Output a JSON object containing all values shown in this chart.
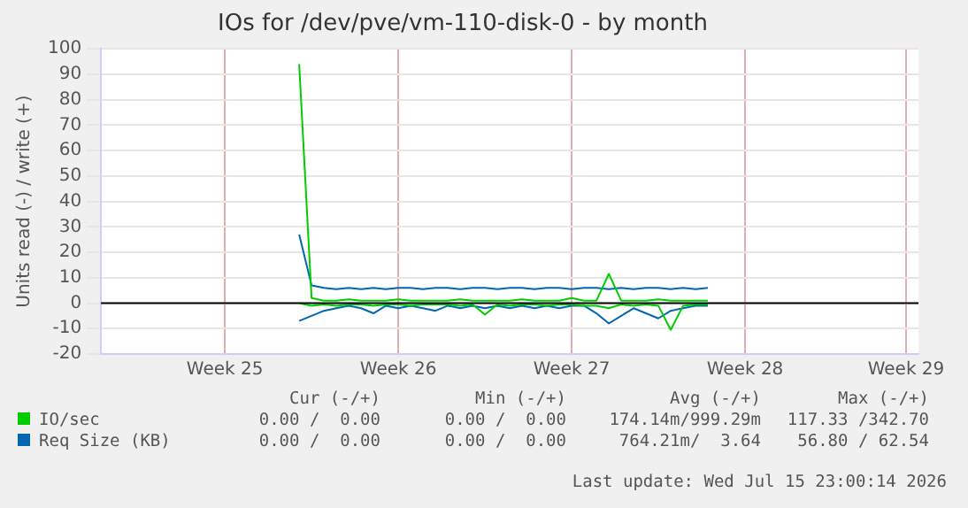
{
  "chart_data": {
    "type": "line",
    "title": "IOs for /dev/pve/vm-110-disk-0 - by month",
    "ylabel": "Units read (-) / write (+)",
    "categories": [
      null,
      null,
      null,
      null,
      null,
      null,
      null,
      null,
      null,
      null,
      "Week 25",
      null,
      null,
      null,
      null,
      null,
      null,
      null,
      null,
      null,
      null,
      null,
      null,
      null,
      "Week 26",
      null,
      null,
      null,
      null,
      null,
      null,
      null,
      null,
      null,
      null,
      null,
      null,
      null,
      "Week 27",
      null,
      null,
      null,
      null,
      null,
      null,
      null,
      null,
      null,
      null,
      null,
      null,
      null,
      "Week 28",
      null,
      null,
      null,
      null,
      null,
      null,
      null,
      null,
      null,
      null,
      null,
      null,
      "Week 29",
      null
    ],
    "series": [
      {
        "name": "IO/sec",
        "color": "#00cc00",
        "values": [
          null,
          null,
          null,
          null,
          null,
          null,
          null,
          null,
          null,
          null,
          null,
          null,
          null,
          null,
          null,
          null,
          94,
          2,
          1,
          1,
          1.5,
          1,
          1,
          1,
          1.5,
          1,
          1,
          1,
          1,
          1.5,
          1,
          1,
          1,
          1,
          1.5,
          1,
          1,
          1,
          2,
          1,
          1,
          11.5,
          1,
          1,
          1,
          1.5,
          1,
          1,
          1,
          1,
          null,
          null,
          null,
          null,
          null,
          null,
          null,
          null,
          null,
          null,
          null,
          null,
          null,
          null,
          null,
          null,
          null
        ]
      },
      {
        "color": "#00cc00",
        "values": [
          null,
          null,
          null,
          null,
          null,
          null,
          null,
          null,
          null,
          null,
          null,
          null,
          null,
          null,
          null,
          null,
          0,
          -1,
          -0.5,
          -1,
          -0.5,
          -0.5,
          -1,
          -0.5,
          -0.5,
          -1,
          -0.5,
          -0.5,
          -0.5,
          -1,
          -0.5,
          -4.5,
          -0.5,
          -1,
          -0.5,
          -0.5,
          -1,
          -0.5,
          -0.5,
          -1,
          -1,
          -2,
          -0.5,
          -1,
          -0.5,
          -1,
          -10.5,
          -1,
          -0.5,
          -0.5,
          null,
          null,
          null,
          null,
          null,
          null,
          null,
          null,
          null,
          null,
          null,
          null,
          null,
          null,
          null,
          null,
          null
        ]
      },
      {
        "name": "Req Size (KB)",
        "color": "#0066b3",
        "values": [
          null,
          null,
          null,
          null,
          null,
          null,
          null,
          null,
          null,
          null,
          null,
          null,
          null,
          null,
          null,
          null,
          27,
          7,
          6,
          5.5,
          6,
          5.5,
          6,
          5.5,
          6,
          6,
          5.5,
          6,
          6,
          5.5,
          6,
          6,
          5.5,
          6,
          6,
          5.5,
          6,
          6,
          5.5,
          6,
          6,
          5.5,
          6,
          5.5,
          6,
          6,
          5.5,
          6,
          5.5,
          6,
          null,
          null,
          null,
          null,
          null,
          null,
          null,
          null,
          null,
          null,
          null,
          null,
          null,
          null,
          null,
          null,
          null
        ]
      },
      {
        "color": "#0066b3",
        "values": [
          null,
          null,
          null,
          null,
          null,
          null,
          null,
          null,
          null,
          null,
          null,
          null,
          null,
          null,
          null,
          null,
          -7,
          -5,
          -3,
          -2,
          -1,
          -2,
          -4,
          -1,
          -2,
          -1,
          -2,
          -3,
          -1,
          -2,
          -1,
          -2,
          -1,
          -2,
          -1,
          -2,
          -1,
          -2,
          -1,
          -1,
          -4,
          -8,
          -5,
          -2,
          -4,
          -6,
          -3,
          -2,
          -1,
          -1,
          null,
          null,
          null,
          null,
          null,
          null,
          null,
          null,
          null,
          null,
          null,
          null,
          null,
          null,
          null,
          null,
          null
        ]
      }
    ],
    "ylim": [
      -20,
      100
    ],
    "yticks": [
      -20,
      -10,
      0,
      10,
      20,
      30,
      40,
      50,
      60,
      70,
      80,
      90,
      100
    ],
    "ref_lines": [
      {
        "axis": "y",
        "value": 0,
        "color": "#000000"
      }
    ],
    "grid": true,
    "legend": "bottom",
    "marker": "none",
    "line_style": "solid",
    "annotations": [
      "Cur (-/+)",
      "Min (-/+)",
      "Avg (-/+)",
      "Max (-/+)",
      "0.00 /  0.00",
      "0.00 /  0.00",
      "174.14m/999.29m",
      "117.33 /342.70",
      "0.00 /  0.00",
      "0.00 /  0.00",
      "764.21m/  3.64",
      "56.80 / 62.54",
      "Last update: Wed Jul 15 23:00:14 2026"
    ]
  }
}
